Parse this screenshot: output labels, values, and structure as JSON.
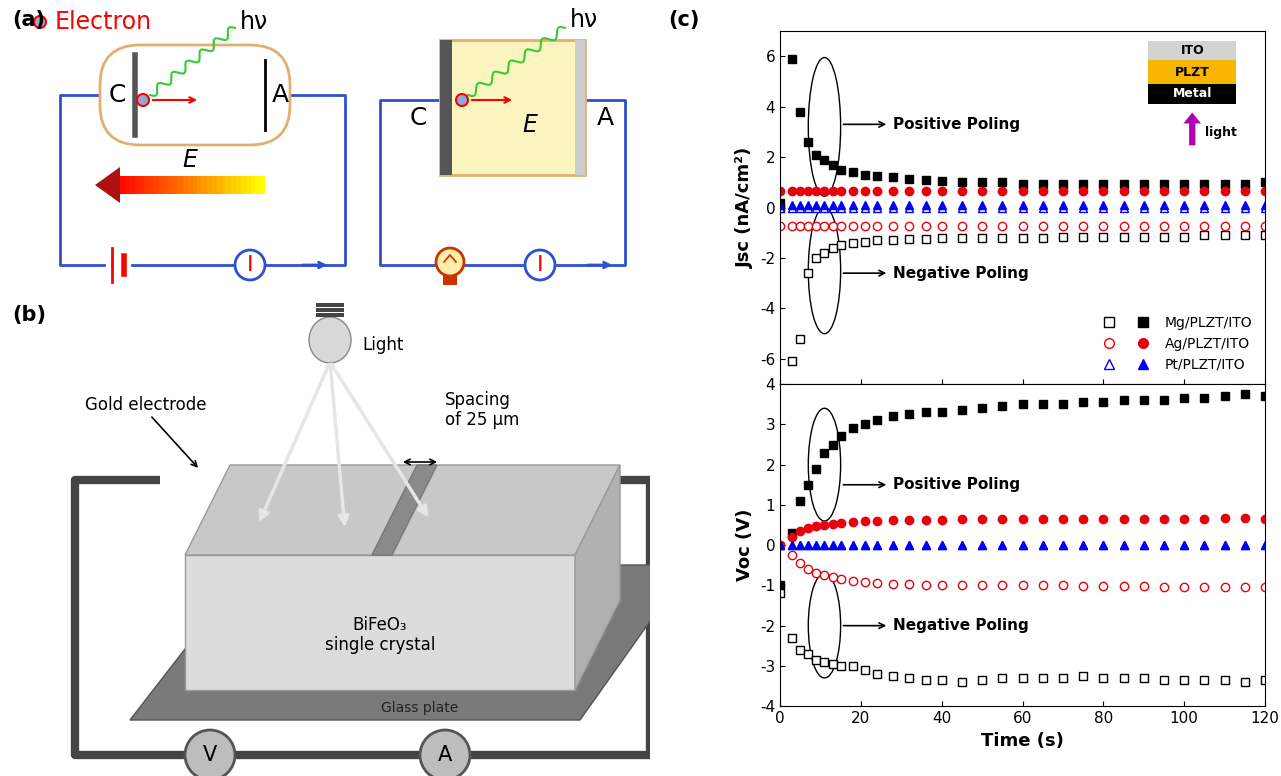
{
  "panels": {
    "a": "(a)",
    "b": "(b)",
    "c": "(c)"
  },
  "diagram_a": {
    "legend_text": "Electron",
    "left_circuit": {
      "photon": "hν",
      "cathode": "C",
      "anode": "A",
      "field": "E",
      "current": "I"
    },
    "right_circuit": {
      "photon": "hν",
      "cathode": "C",
      "anode": "A",
      "field": "E",
      "current": "I"
    }
  },
  "diagram_b": {
    "light": "Light",
    "electrode": "Gold electrode",
    "spacing": "Spacing\nof 25 μm",
    "crystal": "BiFeO₃\nsingle crystal",
    "substrate": "Glass plate",
    "voltmeter": "V",
    "ammeter": "A"
  },
  "chart_data": [
    {
      "type": "scatter",
      "y_label": "Jsc (nA/cm²)",
      "x": [
        0,
        3,
        5,
        7,
        9,
        11,
        13,
        15,
        18,
        21,
        24,
        28,
        32,
        36,
        40,
        45,
        50,
        55,
        60,
        65,
        70,
        75,
        80,
        85,
        90,
        95,
        100,
        105,
        110,
        115,
        120
      ],
      "xlim": [
        0,
        120
      ],
      "xticks": [
        0,
        20,
        40,
        60,
        80,
        100,
        120
      ],
      "ylim": [
        -7,
        7
      ],
      "yticks": [
        -6,
        -4,
        -2,
        0,
        2,
        4,
        6
      ],
      "tick_labels": "y",
      "legend": "lower right",
      "annotations": [
        "Positive Poling",
        "Negative Poling"
      ],
      "inset": {
        "layers": [
          "ITO",
          "PLZT",
          "Metal"
        ],
        "arrow": "light"
      },
      "series": [
        {
          "name": "Mg/PLZT/ITO",
          "color": "#000000",
          "marker": "open_square",
          "line_style": "none",
          "values": [
            0.0,
            -6.1,
            -5.2,
            -2.6,
            -2.0,
            -1.8,
            -1.6,
            -1.5,
            -1.4,
            -1.35,
            -1.3,
            -1.3,
            -1.25,
            -1.25,
            -1.2,
            -1.2,
            -1.2,
            -1.2,
            -1.2,
            -1.2,
            -1.15,
            -1.15,
            -1.15,
            -1.15,
            -1.15,
            -1.15,
            -1.15,
            -1.1,
            -1.1,
            -1.1,
            -1.1
          ]
        },
        {
          "name": "Mg/PLZT/ITO",
          "color": "#000000",
          "marker": "filled_square",
          "line_style": "none",
          "values": [
            0.2,
            5.9,
            3.8,
            2.6,
            2.1,
            1.9,
            1.7,
            1.5,
            1.4,
            1.3,
            1.25,
            1.2,
            1.15,
            1.1,
            1.05,
            1.0,
            1.0,
            1.0,
            0.95,
            0.95,
            0.95,
            0.95,
            0.95,
            0.95,
            0.95,
            0.95,
            0.95,
            0.95,
            0.95,
            0.95,
            1.0
          ]
        },
        {
          "name": "Ag/PLZT/ITO",
          "color": "#e8000b",
          "marker": "open_circle",
          "line_style": "none",
          "values": [
            -0.75,
            -0.75,
            -0.75,
            -0.75,
            -0.75,
            -0.75,
            -0.75,
            -0.75,
            -0.75,
            -0.75,
            -0.75,
            -0.75,
            -0.75,
            -0.75,
            -0.75,
            -0.75,
            -0.75,
            -0.75,
            -0.75,
            -0.75,
            -0.75,
            -0.75,
            -0.75,
            -0.75,
            -0.75,
            -0.75,
            -0.75,
            -0.75,
            -0.75,
            -0.75,
            -0.75
          ]
        },
        {
          "name": "Ag/PLZT/ITO",
          "color": "#e8000b",
          "marker": "filled_circle",
          "line_style": "none",
          "values": [
            0.65,
            0.65,
            0.65,
            0.65,
            0.65,
            0.65,
            0.65,
            0.65,
            0.65,
            0.65,
            0.65,
            0.65,
            0.65,
            0.65,
            0.65,
            0.65,
            0.65,
            0.65,
            0.65,
            0.65,
            0.65,
            0.65,
            0.65,
            0.65,
            0.65,
            0.65,
            0.65,
            0.65,
            0.65,
            0.65,
            0.65
          ]
        },
        {
          "name": "Pt/PLZT/ITO",
          "color": "#0000ff",
          "marker": "open_triangle",
          "line_style": "none",
          "values": [
            0.0,
            0.0,
            0.0,
            0.0,
            0.0,
            0.0,
            0.0,
            0.0,
            0.0,
            0.0,
            0.0,
            0.0,
            0.0,
            0.0,
            0.0,
            0.0,
            0.0,
            0.0,
            0.0,
            0.0,
            0.0,
            0.0,
            0.0,
            0.0,
            0.0,
            0.0,
            0.0,
            0.0,
            0.0,
            0.0,
            0.0
          ]
        },
        {
          "name": "Pt/PLZT/ITO",
          "color": "#0000ff",
          "marker": "filled_triangle",
          "line_style": "none",
          "values": [
            0.1,
            0.1,
            0.1,
            0.1,
            0.1,
            0.1,
            0.1,
            0.1,
            0.1,
            0.1,
            0.1,
            0.1,
            0.1,
            0.1,
            0.1,
            0.1,
            0.1,
            0.1,
            0.1,
            0.1,
            0.1,
            0.1,
            0.1,
            0.1,
            0.1,
            0.1,
            0.1,
            0.1,
            0.1,
            0.1,
            0.1
          ]
        }
      ]
    },
    {
      "type": "scatter",
      "y_label": "Voc (V)",
      "x_label": "Time (s)",
      "x": [
        0,
        3,
        5,
        7,
        9,
        11,
        13,
        15,
        18,
        21,
        24,
        28,
        32,
        36,
        40,
        45,
        50,
        55,
        60,
        65,
        70,
        75,
        80,
        85,
        90,
        95,
        100,
        105,
        110,
        115,
        120
      ],
      "xlim": [
        0,
        120
      ],
      "xticks": [
        0,
        20,
        40,
        60,
        80,
        100,
        120
      ],
      "ylim": [
        -4,
        4
      ],
      "yticks": [
        -4,
        -3,
        -2,
        -1,
        0,
        1,
        2,
        3,
        4
      ],
      "annotations": [
        "Positive Poling",
        "Negative Poling"
      ],
      "series": [
        {
          "name": "Mg/PLZT/ITO",
          "color": "#000000",
          "marker": "open_square",
          "line_style": "none",
          "values": [
            -1.2,
            -2.3,
            -2.6,
            -2.7,
            -2.85,
            -2.9,
            -2.95,
            -3.0,
            -3.0,
            -3.1,
            -3.2,
            -3.25,
            -3.3,
            -3.35,
            -3.35,
            -3.4,
            -3.35,
            -3.3,
            -3.3,
            -3.3,
            -3.3,
            -3.25,
            -3.3,
            -3.3,
            -3.3,
            -3.35,
            -3.35,
            -3.35,
            -3.35,
            -3.4,
            -3.35
          ]
        },
        {
          "name": "Mg/PLZT/ITO",
          "color": "#000000",
          "marker": "filled_square",
          "line_style": "none",
          "values": [
            -1.0,
            0.3,
            1.1,
            1.5,
            1.9,
            2.3,
            2.5,
            2.7,
            2.9,
            3.0,
            3.1,
            3.2,
            3.25,
            3.3,
            3.3,
            3.35,
            3.4,
            3.45,
            3.5,
            3.5,
            3.5,
            3.55,
            3.55,
            3.6,
            3.6,
            3.6,
            3.65,
            3.65,
            3.7,
            3.75,
            3.7
          ]
        },
        {
          "name": "Ag/PLZT/ITO",
          "color": "#e8000b",
          "marker": "open_circle",
          "line_style": "none",
          "values": [
            0.0,
            -0.25,
            -0.45,
            -0.6,
            -0.7,
            -0.75,
            -0.8,
            -0.85,
            -0.9,
            -0.92,
            -0.95,
            -0.97,
            -0.97,
            -1.0,
            -1.0,
            -1.0,
            -1.0,
            -1.0,
            -1.0,
            -1.0,
            -1.0,
            -1.02,
            -1.02,
            -1.02,
            -1.02,
            -1.05,
            -1.05,
            -1.05,
            -1.05,
            -1.05,
            -1.05
          ]
        },
        {
          "name": "Ag/PLZT/ITO",
          "color": "#e8000b",
          "marker": "filled_circle",
          "line_style": "none",
          "values": [
            0.0,
            0.2,
            0.35,
            0.42,
            0.47,
            0.5,
            0.52,
            0.55,
            0.57,
            0.6,
            0.6,
            0.62,
            0.62,
            0.63,
            0.63,
            0.64,
            0.64,
            0.64,
            0.65,
            0.65,
            0.65,
            0.65,
            0.65,
            0.65,
            0.65,
            0.65,
            0.65,
            0.65,
            0.68,
            0.68,
            0.65
          ]
        },
        {
          "name": "Pt/PLZT/ITO",
          "color": "#0000ff",
          "marker": "open_triangle",
          "line_style": "none",
          "values": [
            0.0,
            0.0,
            0.0,
            0.0,
            0.0,
            0.0,
            0.0,
            0.0,
            0.0,
            0.0,
            0.0,
            0.0,
            0.0,
            0.0,
            0.0,
            0.0,
            0.0,
            0.0,
            0.0,
            0.0,
            0.0,
            0.0,
            0.0,
            0.0,
            0.0,
            0.0,
            0.0,
            0.0,
            0.0,
            0.0,
            0.0
          ]
        },
        {
          "name": "Pt/PLZT/ITO",
          "color": "#0000ff",
          "marker": "filled_triangle",
          "line_style": "none",
          "values": [
            0.0,
            0.0,
            0.0,
            0.0,
            0.0,
            0.0,
            0.0,
            0.0,
            0.0,
            0.0,
            0.0,
            0.0,
            0.0,
            0.0,
            0.0,
            0.0,
            0.0,
            0.0,
            0.0,
            0.0,
            0.0,
            0.0,
            0.0,
            0.0,
            0.0,
            0.0,
            0.0,
            0.0,
            0.0,
            0.0,
            0.0
          ]
        }
      ]
    }
  ]
}
